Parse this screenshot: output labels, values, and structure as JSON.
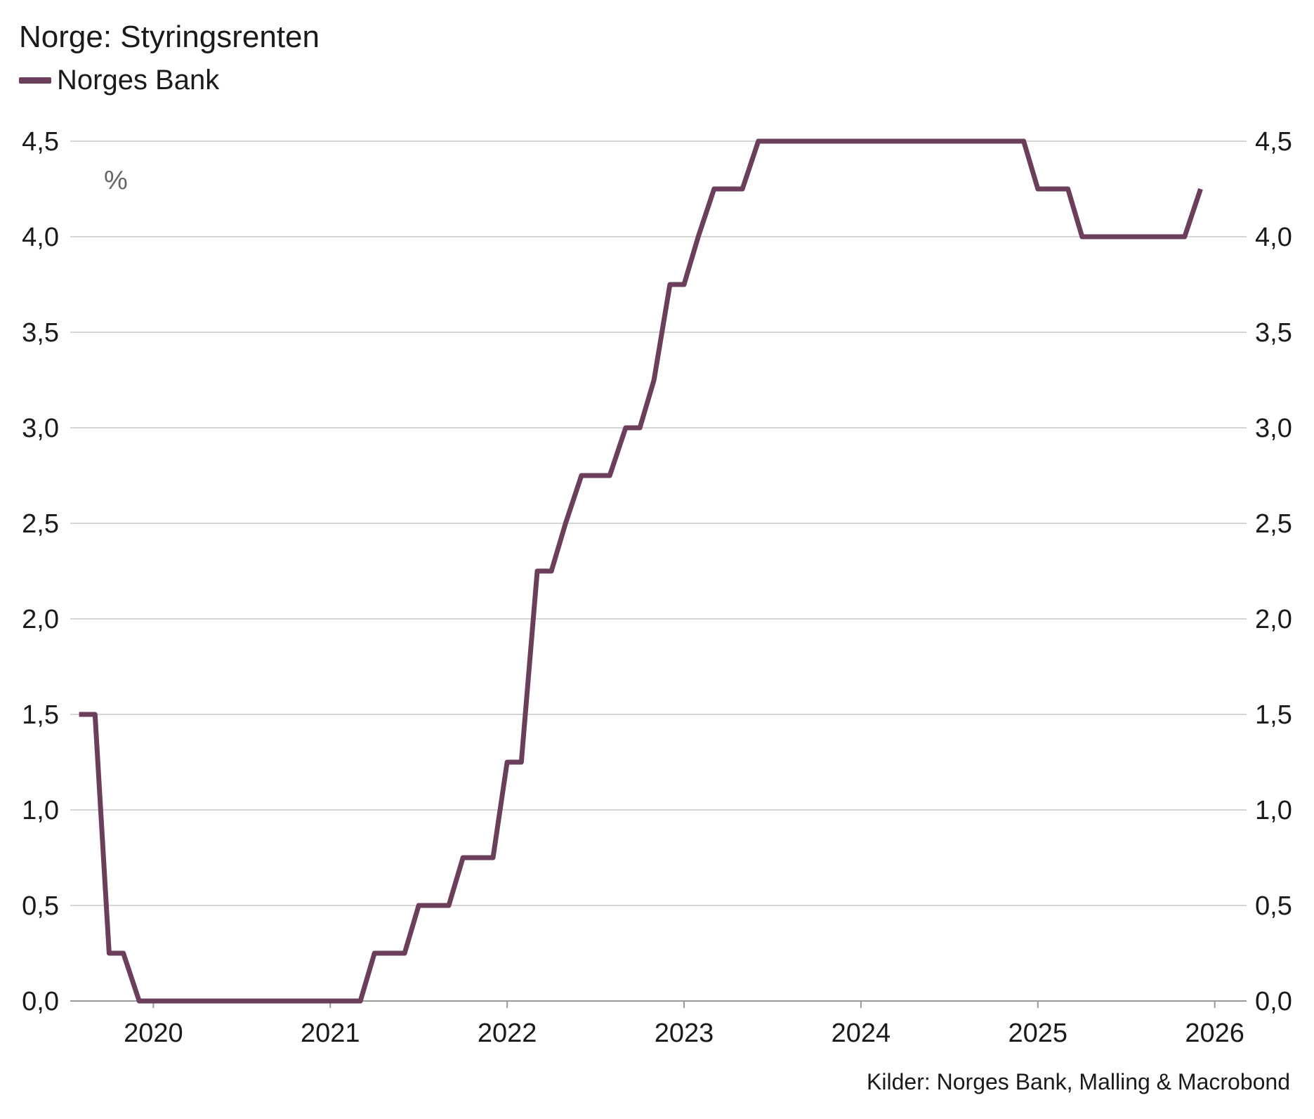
{
  "chart_data": {
    "type": "line",
    "title": "Norge: Styringsrenten",
    "unit_label": "%",
    "source": "Kilder: Norges Bank, Malling & Macrobond",
    "y_ticks": [
      "0,0",
      "0,5",
      "1,0",
      "1,5",
      "2,0",
      "2,5",
      "3,0",
      "3,5",
      "4,0",
      "4,5"
    ],
    "y_tick_values": [
      0,
      0.5,
      1.0,
      1.5,
      2.0,
      2.5,
      3.0,
      3.5,
      4.0,
      4.5
    ],
    "ylim": [
      0,
      4.5
    ],
    "x_ticks": [
      "2020",
      "2021",
      "2022",
      "2023",
      "2024",
      "2025",
      "2026"
    ],
    "x_tick_values": [
      2020,
      2021,
      2022,
      2023,
      2024,
      2025,
      2026
    ],
    "xlim": [
      2019.53,
      2026.18
    ],
    "grid": true,
    "legend_position": "top-left",
    "series": [
      {
        "name": "Norges Bank",
        "color": "#6b3f5c",
        "x": [
          2019.58,
          2019.67,
          2019.75,
          2019.83,
          2019.92,
          2020.0,
          2020.25,
          2020.5,
          2020.75,
          2021.0,
          2021.17,
          2021.25,
          2021.33,
          2021.42,
          2021.5,
          2021.58,
          2021.67,
          2021.75,
          2021.83,
          2021.92,
          2022.0,
          2022.08,
          2022.17,
          2022.25,
          2022.33,
          2022.42,
          2022.5,
          2022.58,
          2022.67,
          2022.75,
          2022.83,
          2022.92,
          2023.0,
          2023.08,
          2023.17,
          2023.25,
          2023.33,
          2023.42,
          2023.5,
          2023.75,
          2024.0,
          2024.25,
          2024.5,
          2024.75,
          2024.92,
          2025.0,
          2025.08,
          2025.17,
          2025.25,
          2025.5,
          2025.75,
          2025.83,
          2025.92
        ],
        "values": [
          1.5,
          1.5,
          0.25,
          0.25,
          0.0,
          0.0,
          0.0,
          0.0,
          0.0,
          0.0,
          0.0,
          0.25,
          0.25,
          0.25,
          0.5,
          0.5,
          0.5,
          0.75,
          0.75,
          0.75,
          1.25,
          1.25,
          2.25,
          2.25,
          2.5,
          2.75,
          2.75,
          2.75,
          3.0,
          3.0,
          3.25,
          3.75,
          3.75,
          4.0,
          4.25,
          4.25,
          4.25,
          4.5,
          4.5,
          4.5,
          4.5,
          4.5,
          4.5,
          4.5,
          4.5,
          4.25,
          4.25,
          4.25,
          4.0,
          4.0,
          4.0,
          4.0,
          4.25
        ]
      }
    ]
  }
}
